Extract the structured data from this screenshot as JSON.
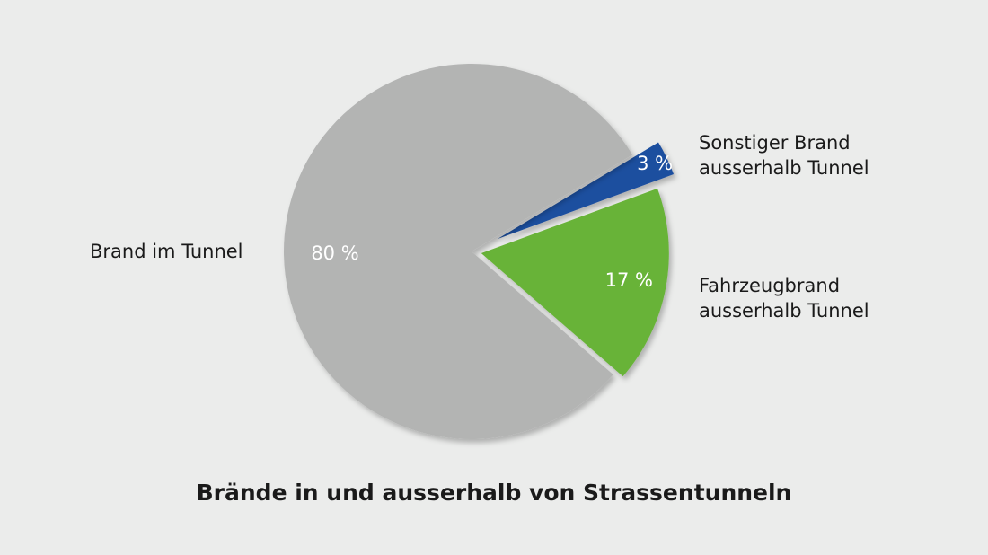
{
  "chart_data": {
    "type": "pie",
    "title": "Brände in und ausserhalb von Strassentunneln",
    "slices": [
      {
        "label_lines": [
          "Sonstiger Brand",
          "ausserhalb Tunnel"
        ],
        "value": 3,
        "value_label": "3 %",
        "color": "#1d4f9f",
        "exploded": true
      },
      {
        "label_lines": [
          "Fahrzeugbrand",
          "ausserhalb Tunnel"
        ],
        "value": 17,
        "value_label": "17 %",
        "color": "#67b337",
        "exploded": true
      },
      {
        "label_lines": [
          "Brand im Tunnel"
        ],
        "value": 80,
        "value_label": "80 %",
        "color": "#b3b4b3",
        "exploded": false
      }
    ],
    "legend": "none (direct labels)"
  }
}
